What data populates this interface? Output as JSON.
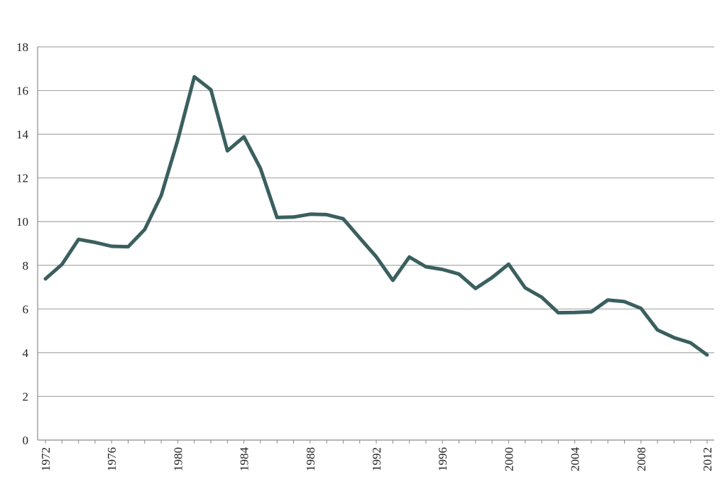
{
  "chart_data": {
    "type": "line",
    "title": "",
    "xlabel": "",
    "ylabel": "",
    "xlim": [
      1972,
      2012
    ],
    "ylim": [
      0,
      18
    ],
    "y_ticks": [
      "0",
      "2",
      "4",
      "6",
      "8",
      "10",
      "12",
      "14",
      "16",
      "18"
    ],
    "x_ticks": [
      "1972",
      "1976",
      "1980",
      "1984",
      "1988",
      "1992",
      "1996",
      "2000",
      "2004",
      "2008",
      "2012"
    ],
    "grid": "horizontal",
    "legend": "none",
    "colors": {
      "line": "#3b5f5f"
    },
    "series": [
      {
        "x": [
          1972,
          1973,
          1974,
          1975,
          1976,
          1977,
          1978,
          1979,
          1980,
          1981,
          1982,
          1983,
          1984,
          1985,
          1986,
          1987,
          1988,
          1989,
          1990,
          1991,
          1992,
          1993,
          1994,
          1995,
          1996,
          1997,
          1998,
          1999,
          2000,
          2001,
          2002,
          2003,
          2004,
          2005,
          2006,
          2007,
          2008,
          2009,
          2010,
          2011,
          2012
        ],
        "values": [
          7.38,
          8.04,
          9.19,
          9.05,
          8.87,
          8.85,
          9.64,
          11.2,
          13.74,
          16.63,
          16.04,
          13.24,
          13.88,
          12.43,
          10.19,
          10.21,
          10.34,
          10.32,
          10.13,
          9.25,
          8.39,
          7.31,
          8.38,
          7.93,
          7.81,
          7.6,
          6.94,
          7.44,
          8.05,
          6.97,
          6.54,
          5.83,
          5.84,
          5.87,
          6.41,
          6.34,
          6.03,
          5.04,
          4.69,
          4.45,
          3.9
        ]
      }
    ]
  }
}
